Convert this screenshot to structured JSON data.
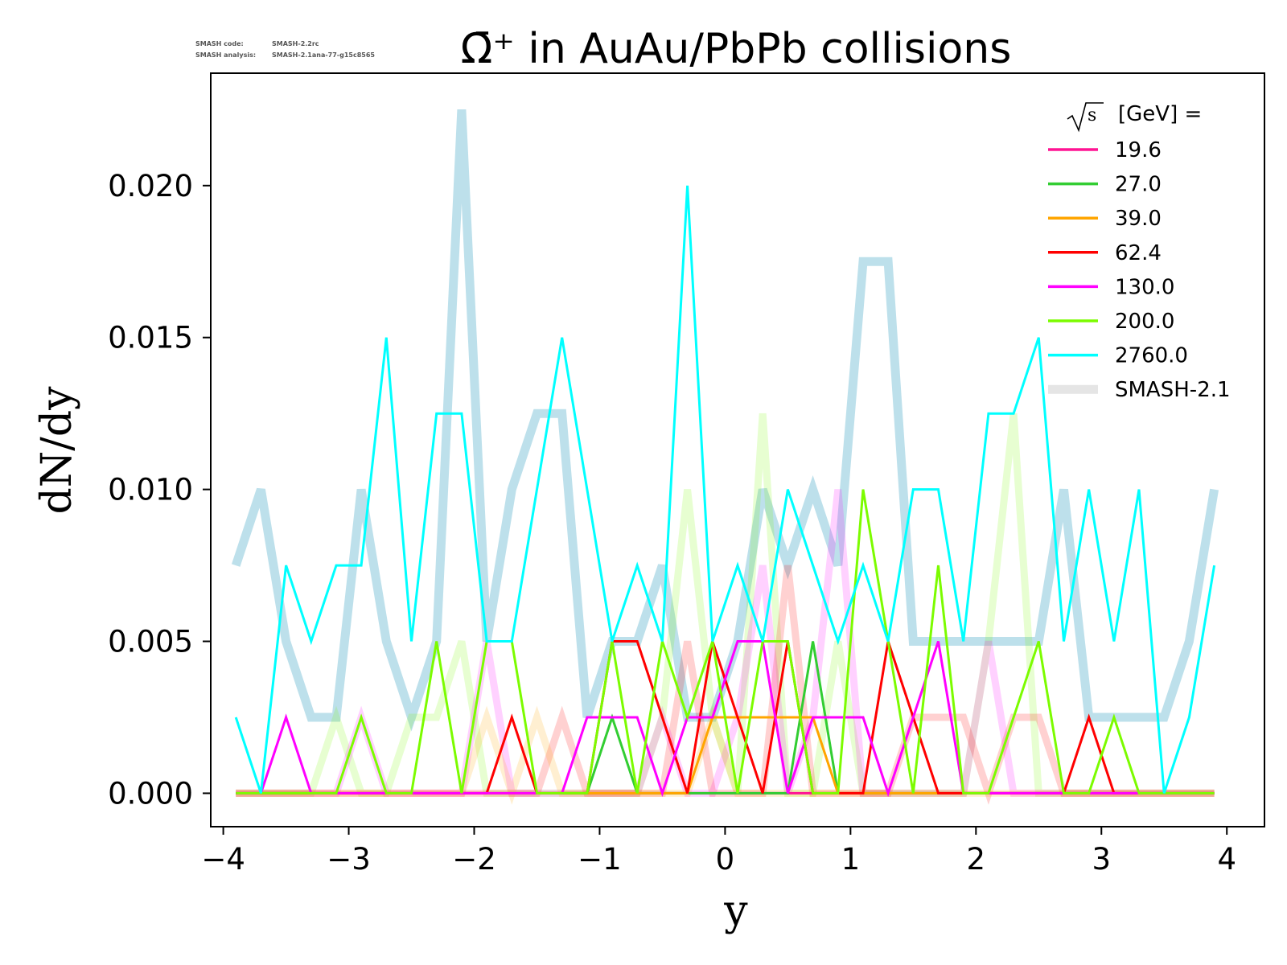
{
  "credits": {
    "code_label": "SMASH code:",
    "code_value": "SMASH-2.2rc",
    "analysis_label": "SMASH analysis:",
    "analysis_value": "SMASH-2.1ana-77-g15c8565"
  },
  "chart_data": {
    "type": "line",
    "title": "Ω̄⁺ in AuAu/PbPb collisions",
    "xlabel": "y",
    "ylabel": "dN/dy",
    "xlim": [
      -4.1,
      4.3
    ],
    "ylim": [
      -0.0011,
      0.0237
    ],
    "xticks": [
      -4,
      -3,
      -2,
      -1,
      0,
      1,
      2,
      3,
      4
    ],
    "xtick_labels": [
      "−4",
      "−3",
      "−2",
      "−1",
      "0",
      "1",
      "2",
      "3",
      "4"
    ],
    "yticks": [
      0.0,
      0.005,
      0.01,
      0.015,
      0.02
    ],
    "ytick_labels": [
      "0.000",
      "0.005",
      "0.010",
      "0.015",
      "0.020"
    ],
    "grid": false,
    "legend": {
      "placement": "top-right",
      "title_sqrt": "s",
      "title_rest": "[GeV] =",
      "entries": [
        {
          "label": "19.6",
          "color": "#ff1493",
          "style": "thin"
        },
        {
          "label": "27.0",
          "color": "#32cd32",
          "style": "thin"
        },
        {
          "label": "39.0",
          "color": "#ffa500",
          "style": "thin"
        },
        {
          "label": "62.4",
          "color": "#ff0000",
          "style": "thin"
        },
        {
          "label": "130.0",
          "color": "#ff00ff",
          "style": "thin"
        },
        {
          "label": "200.0",
          "color": "#7cfc00",
          "style": "thin"
        },
        {
          "label": "2760.0",
          "color": "#00ffff",
          "style": "thin"
        },
        {
          "label": "SMASH-2.1",
          "color": "#d3d3d3",
          "style": "thick"
        }
      ]
    },
    "x": [
      -3.9,
      -3.7,
      -3.5,
      -3.3,
      -3.1,
      -2.9,
      -2.7,
      -2.5,
      -2.3,
      -2.1,
      -1.9,
      -1.7,
      -1.5,
      -1.3,
      -1.1,
      -0.9,
      -0.7,
      -0.5,
      -0.3,
      -0.1,
      0.1,
      0.3,
      0.5,
      0.7,
      0.9,
      1.1,
      1.3,
      1.5,
      1.7,
      1.9,
      2.1,
      2.3,
      2.5,
      2.7,
      2.9,
      3.1,
      3.3,
      3.5,
      3.7,
      3.9
    ],
    "old_series": [
      {
        "color": "#add8e6",
        "values": [
          0.0075,
          0.01,
          0.005,
          0.0025,
          0.0025,
          0.01,
          0.005,
          0.0025,
          0.005,
          0.0225,
          0.005,
          0.01,
          0.0125,
          0.0125,
          0.0025,
          0.005,
          0.005,
          0.0075,
          0.0025,
          0.0025,
          0.005,
          0.01,
          0.0075,
          0.01,
          0.0075,
          0.0175,
          0.0175,
          0.005,
          0.005,
          0.005,
          0.005,
          0.005,
          0.005,
          0.01,
          0.0025,
          0.0025,
          0.0025,
          0.0025,
          0.005,
          0.01
        ]
      },
      {
        "color": "#7cfc00",
        "values": [
          0,
          0,
          0,
          0,
          0.0025,
          0,
          0,
          0.0025,
          0.0025,
          0.005,
          0,
          0,
          0,
          0,
          0,
          0,
          0,
          0.0025,
          0.01,
          0.0025,
          0,
          0.0125,
          0,
          0,
          0.005,
          0,
          0,
          0,
          0,
          0,
          0.005,
          0.0125,
          0,
          0,
          0,
          0,
          0,
          0,
          0,
          0
        ]
      },
      {
        "color": "#ff00ff",
        "values": [
          0,
          0,
          0,
          0,
          0,
          0.0025,
          0,
          0,
          0,
          0,
          0.005,
          0,
          0,
          0,
          0,
          0,
          0,
          0.0025,
          0,
          0,
          0.0025,
          0.0075,
          0,
          0.0025,
          0.01,
          0,
          0,
          0,
          0,
          0,
          0.005,
          0,
          0,
          0,
          0,
          0,
          0,
          0,
          0,
          0
        ]
      },
      {
        "color": "#ff0000",
        "values": [
          0,
          0,
          0,
          0,
          0,
          0,
          0,
          0,
          0,
          0,
          0,
          0,
          0,
          0.0025,
          0,
          0,
          0,
          0,
          0.005,
          0,
          0,
          0,
          0.0075,
          0,
          0,
          0,
          0,
          0.0025,
          0.0025,
          0.0025,
          0,
          0.0025,
          0.0025,
          0,
          0,
          0,
          0,
          0,
          0,
          0
        ]
      },
      {
        "color": "#ffa500",
        "values": [
          0,
          0,
          0,
          0,
          0,
          0,
          0,
          0,
          0,
          0,
          0.0025,
          0,
          0.0025,
          0,
          0,
          0,
          0,
          0,
          0,
          0.0025,
          0,
          0,
          0,
          0,
          0,
          0,
          0,
          0,
          0,
          0,
          0,
          0,
          0,
          0,
          0,
          0,
          0,
          0,
          0,
          0
        ]
      }
    ],
    "series": [
      {
        "name": "19.6",
        "color": "#ff1493",
        "values": [
          0,
          0,
          0,
          0,
          0,
          0,
          0,
          0,
          0,
          0,
          0,
          0,
          0,
          0,
          0,
          0,
          0,
          0,
          0,
          0,
          0,
          0,
          0,
          0,
          0,
          0,
          0,
          0,
          0,
          0,
          0,
          0,
          0,
          0,
          0,
          0,
          0,
          0,
          0,
          0
        ]
      },
      {
        "name": "27.0",
        "color": "#32cd32",
        "values": [
          0,
          0,
          0,
          0,
          0,
          0,
          0,
          0,
          0,
          0,
          0,
          0,
          0,
          0,
          0,
          0.0025,
          0,
          0,
          0,
          0,
          0,
          0,
          0,
          0.005,
          0,
          0,
          0,
          0,
          0,
          0,
          0,
          0,
          0,
          0,
          0,
          0,
          0,
          0,
          0,
          0
        ]
      },
      {
        "name": "39.0",
        "color": "#ffa500",
        "values": [
          0,
          0,
          0,
          0,
          0,
          0,
          0,
          0,
          0,
          0,
          0,
          0,
          0,
          0,
          0,
          0,
          0,
          0,
          0,
          0.0025,
          0.0025,
          0.0025,
          0.0025,
          0.0025,
          0,
          0,
          0,
          0,
          0,
          0,
          0,
          0,
          0,
          0,
          0,
          0,
          0,
          0,
          0,
          0
        ]
      },
      {
        "name": "62.4",
        "color": "#ff0000",
        "values": [
          0,
          0,
          0,
          0,
          0,
          0,
          0,
          0,
          0,
          0,
          0,
          0.0025,
          0,
          0,
          0,
          0.005,
          0.005,
          0.0025,
          0,
          0.005,
          0.0025,
          0,
          0.005,
          0,
          0,
          0,
          0.005,
          0.0025,
          0,
          0,
          0,
          0,
          0,
          0,
          0.0025,
          0,
          0,
          0,
          0,
          0
        ]
      },
      {
        "name": "130.0",
        "color": "#ff00ff",
        "values": [
          0,
          0,
          0.0025,
          0,
          0,
          0,
          0,
          0,
          0,
          0,
          0,
          0,
          0,
          0,
          0.0025,
          0.0025,
          0.0025,
          0,
          0.0025,
          0.0025,
          0.005,
          0.005,
          0,
          0.0025,
          0.0025,
          0.0025,
          0,
          0.0025,
          0.005,
          0,
          0,
          0,
          0,
          0,
          0,
          0,
          0,
          0,
          0,
          0
        ]
      },
      {
        "name": "200.0",
        "color": "#7cfc00",
        "values": [
          0,
          0,
          0,
          0,
          0,
          0.0025,
          0,
          0,
          0.005,
          0,
          0.005,
          0.005,
          0,
          0,
          0,
          0.005,
          0,
          0.005,
          0.0025,
          0.005,
          0,
          0.005,
          0.005,
          0,
          0,
          0.01,
          0.005,
          0,
          0.0075,
          0,
          0,
          0.0025,
          0.005,
          0,
          0,
          0.0025,
          0,
          0,
          0,
          0
        ]
      },
      {
        "name": "2760.0",
        "color": "#00ffff",
        "values": [
          0.0025,
          0,
          0.0075,
          0.005,
          0.0075,
          0.0075,
          0.015,
          0.005,
          0.0125,
          0.0125,
          0.005,
          0.005,
          0.01,
          0.015,
          0.01,
          0.005,
          0.0075,
          0.005,
          0.02,
          0.005,
          0.0075,
          0.005,
          0.01,
          0.0075,
          0.005,
          0.0075,
          0.005,
          0.01,
          0.01,
          0.005,
          0.0125,
          0.0125,
          0.015,
          0.005,
          0.01,
          0.005,
          0.01,
          0,
          0.0025,
          0.0075
        ]
      }
    ]
  }
}
